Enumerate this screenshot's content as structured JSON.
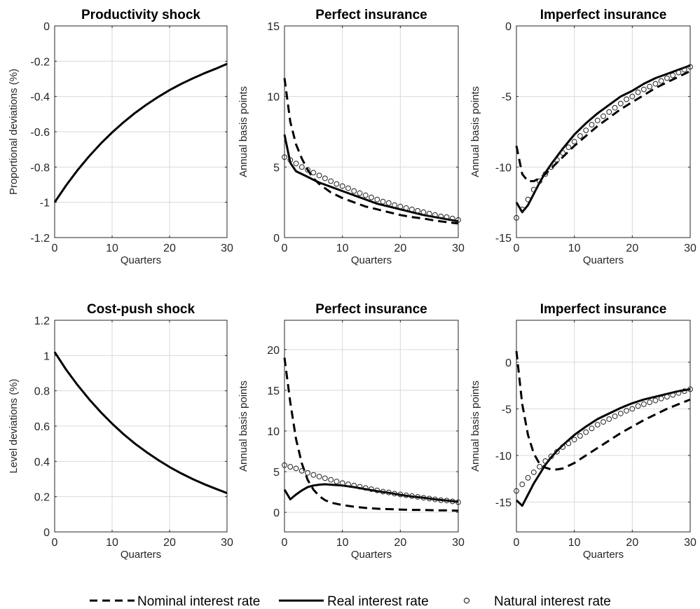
{
  "legend": {
    "nominal": "Nominal interest rate",
    "real": "Real interest rate",
    "natural": "Natural interest rate"
  },
  "chart_data": [
    {
      "type": "line",
      "title": "Productivity shock",
      "xlabel": "Quarters",
      "ylabel": "Proportional deviations (%)",
      "xlim": [
        0,
        30
      ],
      "ylim": [
        -1.2,
        0
      ],
      "xticks": [
        0,
        10,
        20,
        30
      ],
      "yticks": [
        -1.2,
        -1,
        -0.8,
        -0.6,
        -0.4,
        -0.2,
        0
      ],
      "ytick_labels": [
        "-1.2",
        "-1",
        "-0.8",
        "-0.6",
        "-0.4",
        "-0.2",
        "0"
      ],
      "grid": true,
      "series": [
        {
          "style": "solid",
          "x": [
            0,
            2,
            4,
            6,
            8,
            10,
            12,
            14,
            16,
            18,
            20,
            22,
            24,
            26,
            28,
            30
          ],
          "values": [
            -1.0,
            -0.904,
            -0.817,
            -0.739,
            -0.668,
            -0.604,
            -0.546,
            -0.493,
            -0.446,
            -0.403,
            -0.364,
            -0.329,
            -0.298,
            -0.269,
            -0.243,
            -0.215
          ]
        }
      ]
    },
    {
      "type": "line",
      "title": "Perfect insurance",
      "xlabel": "Quarters",
      "ylabel": "Annual basis points",
      "xlim": [
        0,
        30
      ],
      "ylim": [
        0,
        15
      ],
      "xticks": [
        0,
        10,
        20,
        30
      ],
      "yticks": [
        0,
        5,
        10,
        15
      ],
      "ytick_labels": [
        "0",
        "5",
        "10",
        "15"
      ],
      "grid": true,
      "series": [
        {
          "name": "Nominal interest rate",
          "style": "dashed",
          "x": [
            0,
            1,
            2,
            3,
            4,
            5,
            6,
            8,
            10,
            12,
            14,
            16,
            18,
            20,
            22,
            24,
            26,
            28,
            30
          ],
          "values": [
            11.3,
            8.2,
            6.6,
            5.6,
            4.8,
            4.2,
            3.8,
            3.2,
            2.8,
            2.5,
            2.2,
            2.0,
            1.8,
            1.6,
            1.45,
            1.35,
            1.2,
            1.1,
            1.0
          ]
        },
        {
          "name": "Real interest rate",
          "style": "solid",
          "x": [
            0,
            1,
            2,
            3,
            4,
            5,
            6,
            8,
            10,
            12,
            14,
            16,
            18,
            20,
            22,
            24,
            26,
            28,
            30
          ],
          "values": [
            7.3,
            5.3,
            4.7,
            4.5,
            4.3,
            4.1,
            3.9,
            3.6,
            3.3,
            3.0,
            2.7,
            2.4,
            2.2,
            2.0,
            1.8,
            1.6,
            1.45,
            1.3,
            1.15
          ]
        },
        {
          "name": "Natural interest rate",
          "style": "markers",
          "x": [
            0,
            1,
            2,
            3,
            4,
            5,
            6,
            7,
            8,
            9,
            10,
            11,
            12,
            13,
            14,
            15,
            16,
            17,
            18,
            19,
            20,
            21,
            22,
            23,
            24,
            25,
            26,
            27,
            28,
            29,
            30
          ],
          "values": [
            5.7,
            5.5,
            5.25,
            5.0,
            4.8,
            4.6,
            4.4,
            4.2,
            4.0,
            3.8,
            3.65,
            3.5,
            3.3,
            3.15,
            3.0,
            2.85,
            2.7,
            2.55,
            2.45,
            2.3,
            2.2,
            2.1,
            2.0,
            1.9,
            1.8,
            1.7,
            1.6,
            1.5,
            1.45,
            1.35,
            1.25
          ]
        }
      ]
    },
    {
      "type": "line",
      "title": "Imperfect insurance",
      "xlabel": "Quarters",
      "ylabel": "Annual basis points",
      "xlim": [
        0,
        30
      ],
      "ylim": [
        -15,
        0
      ],
      "xticks": [
        0,
        10,
        20,
        30
      ],
      "yticks": [
        -15,
        -10,
        -5,
        0
      ],
      "ytick_labels": [
        "-15",
        "-10",
        "-5",
        "0"
      ],
      "grid": true,
      "series": [
        {
          "name": "Nominal interest rate",
          "style": "dashed",
          "x": [
            0,
            1,
            2,
            3,
            4,
            5,
            6,
            8,
            10,
            12,
            14,
            16,
            18,
            20,
            22,
            24,
            26,
            28,
            30
          ],
          "values": [
            -8.5,
            -10.5,
            -11.0,
            -11.0,
            -10.8,
            -10.5,
            -10.1,
            -9.3,
            -8.5,
            -7.8,
            -7.1,
            -6.5,
            -5.9,
            -5.4,
            -4.9,
            -4.4,
            -4.0,
            -3.6,
            -3.2
          ]
        },
        {
          "name": "Real interest rate",
          "style": "solid",
          "x": [
            0,
            1,
            2,
            3,
            4,
            5,
            6,
            8,
            10,
            12,
            14,
            16,
            18,
            20,
            22,
            24,
            26,
            28,
            30
          ],
          "values": [
            -12.5,
            -13.2,
            -12.7,
            -11.9,
            -11.1,
            -10.4,
            -9.8,
            -8.7,
            -7.7,
            -6.9,
            -6.2,
            -5.6,
            -5.0,
            -4.6,
            -4.1,
            -3.7,
            -3.4,
            -3.1,
            -2.8
          ]
        },
        {
          "name": "Natural interest rate",
          "style": "markers",
          "x": [
            0,
            1,
            2,
            3,
            4,
            5,
            6,
            7,
            8,
            9,
            10,
            11,
            12,
            13,
            14,
            15,
            16,
            17,
            18,
            19,
            20,
            21,
            22,
            23,
            24,
            25,
            26,
            27,
            28,
            29,
            30
          ],
          "values": [
            -13.6,
            -13.0,
            -12.3,
            -11.6,
            -11.0,
            -10.5,
            -10.0,
            -9.5,
            -9.0,
            -8.6,
            -8.2,
            -7.8,
            -7.4,
            -7.0,
            -6.7,
            -6.4,
            -6.1,
            -5.8,
            -5.5,
            -5.2,
            -5.0,
            -4.7,
            -4.5,
            -4.3,
            -4.1,
            -3.9,
            -3.7,
            -3.5,
            -3.3,
            -3.1,
            -2.9
          ]
        }
      ]
    },
    {
      "type": "line",
      "title": "Cost-push shock",
      "xlabel": "Quarters",
      "ylabel": "Level deviations (%)",
      "xlim": [
        0,
        30
      ],
      "ylim": [
        0,
        1.2
      ],
      "xticks": [
        0,
        10,
        20,
        30
      ],
      "yticks": [
        0,
        0.2,
        0.4,
        0.6,
        0.8,
        1,
        1.2
      ],
      "ytick_labels": [
        "0",
        "0.2",
        "0.4",
        "0.6",
        "0.8",
        "1",
        "1.2"
      ],
      "grid": true,
      "series": [
        {
          "style": "solid",
          "x": [
            0,
            2,
            4,
            6,
            8,
            10,
            12,
            14,
            16,
            18,
            20,
            22,
            24,
            26,
            28,
            30
          ],
          "values": [
            1.02,
            0.92,
            0.832,
            0.752,
            0.68,
            0.614,
            0.554,
            0.5,
            0.452,
            0.408,
            0.368,
            0.332,
            0.3,
            0.271,
            0.245,
            0.22
          ]
        }
      ]
    },
    {
      "type": "line",
      "title": "Perfect insurance",
      "xlabel": "Quarters",
      "ylabel": "Annual basis points",
      "xlim": [
        0,
        30
      ],
      "ylim": [
        -2.4,
        23.6
      ],
      "xticks": [
        0,
        10,
        20,
        30
      ],
      "yticks": [
        0,
        5,
        10,
        15,
        20
      ],
      "ytick_labels": [
        "0",
        "5",
        "10",
        "15",
        "20"
      ],
      "grid": true,
      "series": [
        {
          "name": "Nominal interest rate",
          "style": "dashed",
          "x": [
            0,
            1,
            2,
            3,
            4,
            5,
            6,
            7,
            8,
            10,
            12,
            14,
            16,
            18,
            20,
            22,
            24,
            26,
            28,
            30
          ],
          "values": [
            19.0,
            13.5,
            9.0,
            6.0,
            4.0,
            2.8,
            2.0,
            1.5,
            1.2,
            0.9,
            0.7,
            0.55,
            0.45,
            0.4,
            0.35,
            0.3,
            0.3,
            0.25,
            0.25,
            0.2
          ]
        },
        {
          "name": "Real interest rate",
          "style": "solid",
          "x": [
            0,
            1,
            2,
            3,
            4,
            5,
            6,
            7,
            8,
            10,
            12,
            14,
            16,
            18,
            20,
            22,
            24,
            26,
            28,
            30
          ],
          "values": [
            2.8,
            1.6,
            2.2,
            2.7,
            3.1,
            3.3,
            3.4,
            3.45,
            3.4,
            3.3,
            3.1,
            2.85,
            2.6,
            2.4,
            2.15,
            1.95,
            1.8,
            1.6,
            1.45,
            1.3
          ]
        },
        {
          "name": "Natural interest rate",
          "style": "markers",
          "x": [
            0,
            1,
            2,
            3,
            4,
            5,
            6,
            7,
            8,
            9,
            10,
            11,
            12,
            13,
            14,
            15,
            16,
            17,
            18,
            19,
            20,
            21,
            22,
            23,
            24,
            25,
            26,
            27,
            28,
            29,
            30
          ],
          "values": [
            5.8,
            5.6,
            5.4,
            5.1,
            4.85,
            4.6,
            4.4,
            4.2,
            4.0,
            3.8,
            3.6,
            3.45,
            3.3,
            3.15,
            3.0,
            2.85,
            2.7,
            2.55,
            2.45,
            2.3,
            2.2,
            2.1,
            2.0,
            1.9,
            1.8,
            1.7,
            1.6,
            1.5,
            1.45,
            1.35,
            1.25
          ]
        }
      ]
    },
    {
      "type": "line",
      "title": "Imperfect insurance",
      "xlabel": "Quarters",
      "ylabel": "Annual basis points",
      "xlim": [
        0,
        30
      ],
      "ylim": [
        -18.2,
        4.5
      ],
      "xticks": [
        0,
        10,
        20,
        30
      ],
      "yticks": [
        -15,
        -10,
        -5,
        0
      ],
      "ytick_labels": [
        "-15",
        "-10",
        "-5",
        "0"
      ],
      "grid": true,
      "series": [
        {
          "name": "Nominal interest rate",
          "style": "dashed",
          "x": [
            0,
            1,
            2,
            3,
            4,
            5,
            6,
            7,
            8,
            10,
            12,
            14,
            16,
            18,
            20,
            22,
            24,
            26,
            28,
            30
          ],
          "values": [
            1.2,
            -4.5,
            -7.8,
            -9.8,
            -10.9,
            -11.3,
            -11.5,
            -11.5,
            -11.4,
            -10.8,
            -10.0,
            -9.2,
            -8.4,
            -7.6,
            -6.9,
            -6.2,
            -5.6,
            -5.0,
            -4.5,
            -4.0
          ]
        },
        {
          "name": "Real interest rate",
          "style": "solid",
          "x": [
            0,
            1,
            2,
            3,
            4,
            5,
            6,
            7,
            8,
            10,
            12,
            14,
            16,
            18,
            20,
            22,
            24,
            26,
            28,
            30
          ],
          "values": [
            -14.8,
            -15.4,
            -14.2,
            -13.0,
            -12.0,
            -11.0,
            -10.2,
            -9.5,
            -8.9,
            -7.8,
            -6.9,
            -6.1,
            -5.5,
            -4.9,
            -4.4,
            -4.0,
            -3.7,
            -3.4,
            -3.1,
            -2.9
          ]
        },
        {
          "name": "Natural interest rate",
          "style": "markers",
          "x": [
            0,
            1,
            2,
            3,
            4,
            5,
            6,
            7,
            8,
            9,
            10,
            11,
            12,
            13,
            14,
            15,
            16,
            17,
            18,
            19,
            20,
            21,
            22,
            23,
            24,
            25,
            26,
            27,
            28,
            29,
            30
          ],
          "values": [
            -13.8,
            -13.1,
            -12.4,
            -11.8,
            -11.2,
            -10.6,
            -10.1,
            -9.6,
            -9.1,
            -8.7,
            -8.3,
            -7.9,
            -7.5,
            -7.1,
            -6.7,
            -6.4,
            -6.1,
            -5.8,
            -5.5,
            -5.2,
            -5.0,
            -4.7,
            -4.5,
            -4.3,
            -4.1,
            -3.9,
            -3.7,
            -3.5,
            -3.3,
            -3.1,
            -2.9
          ]
        }
      ]
    }
  ]
}
